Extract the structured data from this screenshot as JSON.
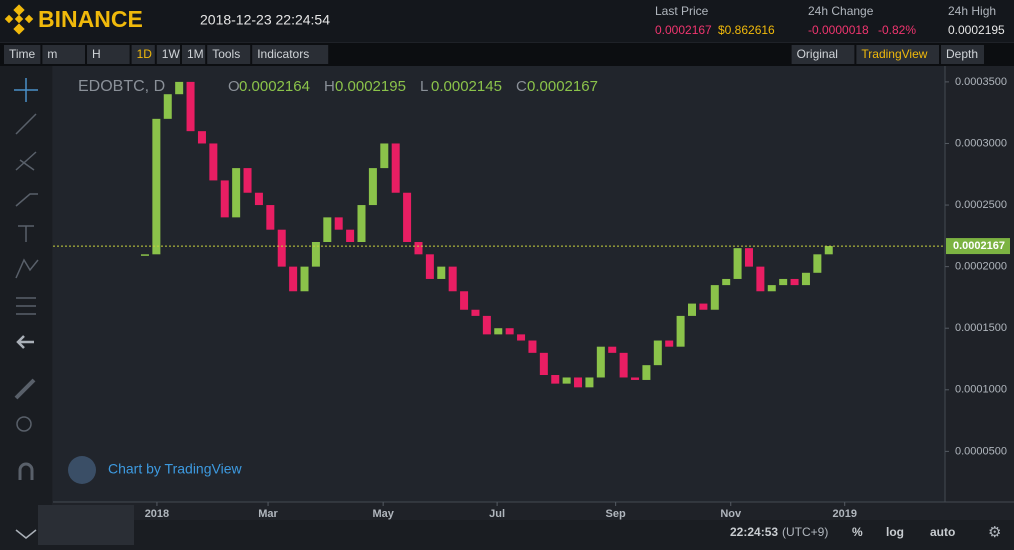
{
  "header": {
    "logo": "BINANCE",
    "datetime": "2018-12-23 22:24:54",
    "last_price": {
      "label": "Last Price",
      "value": "0.0002167",
      "usd": "$0.862616"
    },
    "change": {
      "label": "24h Change",
      "value": "-0.0000018",
      "percent": "-0.82%"
    },
    "high": {
      "label": "24h High",
      "value": "0.0002195"
    }
  },
  "toolbar": {
    "left": [
      "Time",
      "m",
      "H",
      "1D",
      "1W",
      "1M",
      "Tools",
      "Indicators"
    ],
    "active": "1D",
    "right": [
      "Original",
      "TradingView",
      "Depth"
    ],
    "selected": "TradingView"
  },
  "legend": {
    "symbol": "EDOBTC, D",
    "ohlc": [
      {
        "key": "O",
        "value": "0.0002164"
      },
      {
        "key": "H",
        "value": "0.0002195"
      },
      {
        "key": "L",
        "value": "0.0002145"
      },
      {
        "key": "C",
        "value": "0.0002167"
      }
    ]
  },
  "watermark": "Chart by TradingView",
  "status": {
    "time": "22:24:53",
    "timezone": "(UTC+9)",
    "buttons": [
      "%",
      "log",
      "auto"
    ]
  },
  "chart_data": {
    "type": "candlestick",
    "up_color": "#8bc34a",
    "down_color": "#e91e63",
    "values": [
      0.00021,
      0.00032,
      0.00034,
      0.00035,
      0.00031,
      0.0003,
      0.00027,
      0.00024,
      0.00028,
      0.00026,
      0.00025,
      0.00023,
      0.0002,
      0.00018,
      0.0002,
      0.00022,
      0.00024,
      0.00023,
      0.00022,
      0.00025,
      0.00028,
      0.0003,
      0.00026,
      0.00022,
      0.00021,
      0.00019,
      0.0002,
      0.00018,
      0.000165,
      0.00016,
      0.000145,
      0.00015,
      0.000145,
      0.00014,
      0.00013,
      0.000112,
      0.000105,
      0.00011,
      0.000102,
      0.00011,
      0.000135,
      0.00013,
      0.00011,
      0.000108,
      0.00012,
      0.00014,
      0.000135,
      0.00016,
      0.00017,
      0.000165,
      0.000185,
      0.00019,
      0.000215,
      0.0002,
      0.00018,
      0.000185,
      0.00019,
      0.000185,
      0.000195,
      0.00021,
      0.0002167
    ],
    "xlim": [
      -8.07,
      70.2
    ],
    "xticks": [
      {
        "value": 1.05,
        "label": "2018"
      },
      {
        "value": 10.8,
        "label": "Mar"
      },
      {
        "value": 20.9,
        "label": "May"
      },
      {
        "value": 30.9,
        "label": "Jul"
      },
      {
        "value": 41.3,
        "label": "Sep"
      },
      {
        "value": 51.4,
        "label": "Nov"
      },
      {
        "value": 61.4,
        "label": "2019"
      }
    ],
    "ylim": [
      8.9e-06,
      0.0003629
    ],
    "yticks": [
      {
        "value": 5e-05,
        "label": "0.0000500"
      },
      {
        "value": 0.0001,
        "label": "0.0001000"
      },
      {
        "value": 0.00015,
        "label": "0.0001500"
      },
      {
        "value": 0.0002,
        "label": "0.0002000"
      },
      {
        "value": 0.00025,
        "label": "0.0002500"
      },
      {
        "value": 0.0003,
        "label": "0.0003000"
      },
      {
        "value": 0.00035,
        "label": "0.0003500"
      }
    ],
    "last_price": 0.0002167
  }
}
